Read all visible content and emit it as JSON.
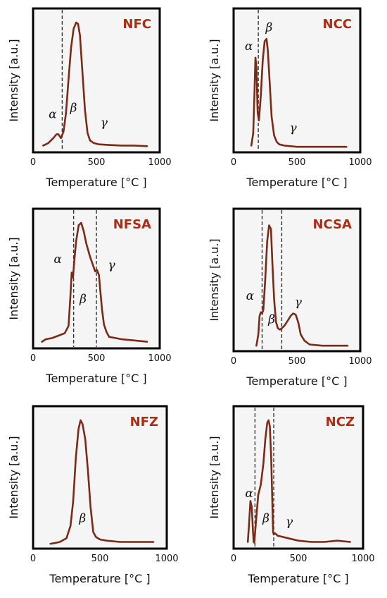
{
  "chart_data": [
    {
      "type": "line",
      "title": "NFC",
      "xlabel": "Temperature [°C ]",
      "ylabel": "Intensity [a.u.]",
      "xlim": [
        0,
        1000
      ],
      "ylim": [
        0,
        1
      ],
      "xticks": [
        "0",
        "500",
        "1000"
      ],
      "dividers": [
        230
      ],
      "region_labels": [
        {
          "text": "α",
          "x": 155,
          "y": 0.24
        },
        {
          "text": "β",
          "x": 320,
          "y": 0.29
        },
        {
          "text": "γ",
          "x": 560,
          "y": 0.17
        }
      ],
      "series": [
        {
          "x": [
            80,
            120,
            160,
            185,
            200,
            220,
            240,
            260,
            280,
            300,
            320,
            340,
            355,
            370,
            390,
            410,
            430,
            450,
            480,
            520,
            600,
            700,
            800,
            900
          ],
          "y": [
            0.02,
            0.04,
            0.08,
            0.11,
            0.11,
            0.08,
            0.13,
            0.28,
            0.55,
            0.8,
            0.95,
            1.0,
            0.99,
            0.9,
            0.6,
            0.3,
            0.12,
            0.06,
            0.04,
            0.03,
            0.025,
            0.02,
            0.02,
            0.015
          ]
        }
      ]
    },
    {
      "type": "line",
      "title": "NCC",
      "xlabel": "Temperature [°C ]",
      "ylabel": "Intensity [a.u.]",
      "xlim": [
        0,
        1000
      ],
      "ylim": [
        0,
        1
      ],
      "xticks": [
        "0",
        "500",
        "1000"
      ],
      "dividers": [
        195
      ],
      "region_labels": [
        {
          "text": "α",
          "x": 120,
          "y": 0.78
        },
        {
          "text": "β",
          "x": 280,
          "y": 0.93
        },
        {
          "text": "γ",
          "x": 470,
          "y": 0.13
        }
      ],
      "series": [
        {
          "x": [
            140,
            155,
            165,
            172,
            180,
            190,
            200,
            215,
            230,
            245,
            260,
            270,
            285,
            300,
            320,
            340,
            360,
            400,
            450,
            500,
            600,
            700,
            800,
            890
          ],
          "y": [
            0.02,
            0.12,
            0.45,
            0.72,
            0.65,
            0.28,
            0.22,
            0.42,
            0.7,
            0.85,
            0.87,
            0.78,
            0.52,
            0.25,
            0.1,
            0.05,
            0.03,
            0.02,
            0.015,
            0.01,
            0.01,
            0.01,
            0.01,
            0.01
          ]
        }
      ]
    },
    {
      "type": "line",
      "title": "NFSA",
      "xlabel": "Temperature [°C ]",
      "ylabel": "Intensity [a.u.]",
      "xlim": [
        0,
        1000
      ],
      "ylim": [
        0,
        1
      ],
      "xticks": [
        "0",
        "500",
        "1000"
      ],
      "dividers": [
        320,
        500
      ],
      "region_labels": [
        {
          "text": "α",
          "x": 195,
          "y": 0.67
        },
        {
          "text": "β",
          "x": 395,
          "y": 0.34
        },
        {
          "text": "γ",
          "x": 620,
          "y": 0.62
        }
      ],
      "series": [
        {
          "x": [
            70,
            100,
            150,
            200,
            250,
            280,
            295,
            305,
            315,
            325,
            340,
            360,
            380,
            400,
            420,
            450,
            470,
            490,
            505,
            520,
            530,
            545,
            560,
            580,
            600,
            650,
            700,
            800,
            900
          ],
          "y": [
            0.02,
            0.04,
            0.05,
            0.07,
            0.09,
            0.15,
            0.4,
            0.59,
            0.55,
            0.68,
            0.85,
            0.98,
            1.0,
            0.93,
            0.83,
            0.72,
            0.66,
            0.6,
            0.61,
            0.57,
            0.45,
            0.28,
            0.16,
            0.1,
            0.06,
            0.05,
            0.04,
            0.03,
            0.02
          ]
        }
      ]
    },
    {
      "type": "line",
      "title": "NCSA",
      "xlabel": "Temperature [°C ]",
      "ylabel": "Intensity [a.u.]",
      "xlim": [
        0,
        1000
      ],
      "ylim": [
        0,
        1
      ],
      "xticks": [
        "0",
        "500",
        "1000"
      ],
      "dividers": [
        225,
        380
      ],
      "region_labels": [
        {
          "text": "α",
          "x": 130,
          "y": 0.38
        },
        {
          "text": "β",
          "x": 300,
          "y": 0.19
        },
        {
          "text": "γ",
          "x": 510,
          "y": 0.33
        }
      ],
      "series": [
        {
          "x": [
            180,
            195,
            205,
            215,
            225,
            235,
            250,
            265,
            280,
            295,
            305,
            320,
            335,
            350,
            365,
            380,
            400,
            420,
            450,
            470,
            490,
            510,
            530,
            560,
            600,
            700,
            800,
            900
          ],
          "y": [
            0.01,
            0.1,
            0.25,
            0.28,
            0.27,
            0.3,
            0.55,
            0.85,
            0.98,
            0.95,
            0.7,
            0.38,
            0.2,
            0.15,
            0.14,
            0.15,
            0.17,
            0.2,
            0.25,
            0.27,
            0.26,
            0.2,
            0.1,
            0.05,
            0.02,
            0.01,
            0.01,
            0.01
          ]
        }
      ]
    },
    {
      "type": "line",
      "title": "NFZ",
      "xlabel": "Temperature [°C ]",
      "ylabel": "Intensity [a.u.]",
      "xlim": [
        0,
        1000
      ],
      "ylim": [
        0,
        1
      ],
      "xticks": [
        "0",
        "500",
        "1000"
      ],
      "dividers": [],
      "region_labels": [
        {
          "text": "β",
          "x": 370,
          "y": 0.18
        }
      ],
      "series": [
        {
          "x": [
            130,
            160,
            200,
            250,
            280,
            300,
            320,
            340,
            355,
            370,
            390,
            410,
            430,
            450,
            470,
            500,
            550,
            650,
            750,
            850,
            900
          ],
          "y": [
            0.005,
            0.01,
            0.02,
            0.05,
            0.15,
            0.35,
            0.7,
            0.93,
            1.0,
            0.97,
            0.85,
            0.6,
            0.3,
            0.1,
            0.06,
            0.04,
            0.03,
            0.02,
            0.02,
            0.02,
            0.02
          ]
        }
      ]
    },
    {
      "type": "line",
      "title": "NCZ",
      "xlabel": "Temperature [°C ]",
      "ylabel": "Intensity [a.u.]",
      "xlim": [
        0,
        1000
      ],
      "ylim": [
        0,
        1
      ],
      "xticks": [
        "0",
        "500",
        "1000"
      ],
      "dividers": [
        165,
        310
      ],
      "region_labels": [
        {
          "text": "α",
          "x": 120,
          "y": 0.38
        },
        {
          "text": "β",
          "x": 250,
          "y": 0.18
        },
        {
          "text": "γ",
          "x": 430,
          "y": 0.15
        }
      ],
      "series": [
        {
          "x": [
            110,
            120,
            130,
            140,
            150,
            155,
            160,
            170,
            190,
            210,
            230,
            245,
            260,
            270,
            280,
            290,
            300,
            305,
            310,
            320,
            340,
            380,
            420,
            500,
            600,
            700,
            800,
            900
          ],
          "y": [
            0.02,
            0.18,
            0.35,
            0.3,
            0.1,
            0.02,
            0.015,
            0.15,
            0.4,
            0.48,
            0.65,
            0.85,
            0.98,
            1.0,
            0.95,
            0.7,
            0.3,
            0.1,
            0.08,
            0.09,
            0.07,
            0.06,
            0.05,
            0.03,
            0.02,
            0.02,
            0.03,
            0.02
          ]
        }
      ]
    }
  ],
  "colors": {
    "curve": "#7a2a16",
    "title": "#b02a14",
    "frame": "#000000",
    "plot_background": "#f5f5f5"
  }
}
